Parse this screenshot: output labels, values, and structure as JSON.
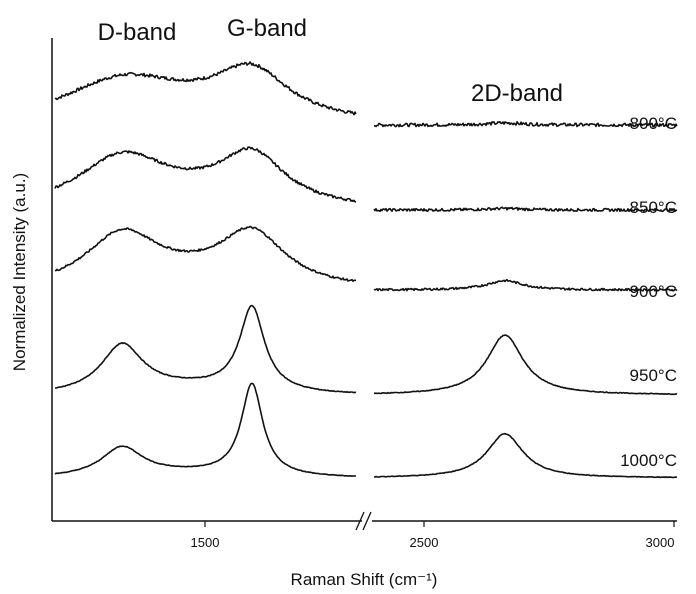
{
  "chart_data": {
    "type": "line",
    "xlabel": "Raman Shift (cm⁻¹)",
    "ylabel": "Normalized Intensity (a.u.)",
    "x_ticks": [
      "1500",
      "2500",
      "3000"
    ],
    "axis_break": true,
    "annotations": [
      "D-band",
      "G-band",
      "2D-band"
    ],
    "grid": false,
    "series": [
      {
        "name": "800°C",
        "noise": 0.55,
        "D": 0.8,
        "Dwidth": 75,
        "G": 0.9,
        "Gwidth": 45,
        "TwoD": 0.04
      },
      {
        "name": "850°C",
        "noise": 0.45,
        "D": 0.95,
        "Dwidth": 55,
        "G": 0.95,
        "Gwidth": 40,
        "TwoD": 0.03
      },
      {
        "name": "900°C",
        "noise": 0.35,
        "D": 1.0,
        "Dwidth": 45,
        "G": 1.0,
        "Gwidth": 40,
        "TwoD": 0.18
      },
      {
        "name": "950°C",
        "noise": 0.12,
        "D": 0.9,
        "Dwidth": 25,
        "G": 1.6,
        "Gwidth": 15,
        "TwoD": 1.15
      },
      {
        "name": "1000°C",
        "noise": 0.1,
        "D": 0.55,
        "Dwidth": 25,
        "G": 1.75,
        "Gwidth": 13,
        "TwoD": 0.85
      }
    ]
  }
}
